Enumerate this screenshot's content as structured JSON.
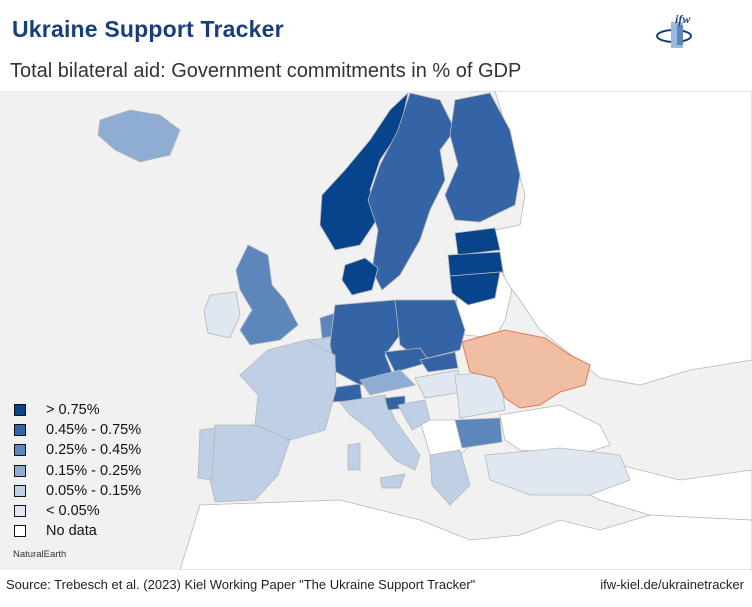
{
  "header": {
    "title": "Ukraine Support Tracker",
    "subtitle": "Total bilateral aid: Government commitments in % of GDP",
    "logo_text": "ifw"
  },
  "legend": {
    "items": [
      {
        "label": "> 0.75%",
        "color": "#08448c"
      },
      {
        "label": "0.45% - 0.75%",
        "color": "#3464a6"
      },
      {
        "label": "0.25% - 0.45%",
        "color": "#5d86bd"
      },
      {
        "label": "0.15% - 0.25%",
        "color": "#8fadd2"
      },
      {
        "label": "0.05% - 0.15%",
        "color": "#bfcfe5"
      },
      {
        "label": "< 0.05%",
        "color": "#dfe7f1"
      },
      {
        "label": "No data",
        "color": "#ffffff"
      }
    ]
  },
  "map": {
    "highlight_color": "#f0bfa3",
    "background_color": "#f1f1f1",
    "no_data_color": "#ffffff",
    "attribution": "NaturalEarth"
  },
  "footer": {
    "source": "Source: Trebesch et al. (2023) Kiel Working Paper \"The Ukraine Support Tracker\"",
    "url": "ifw-kiel.de/ukrainetracker"
  }
}
